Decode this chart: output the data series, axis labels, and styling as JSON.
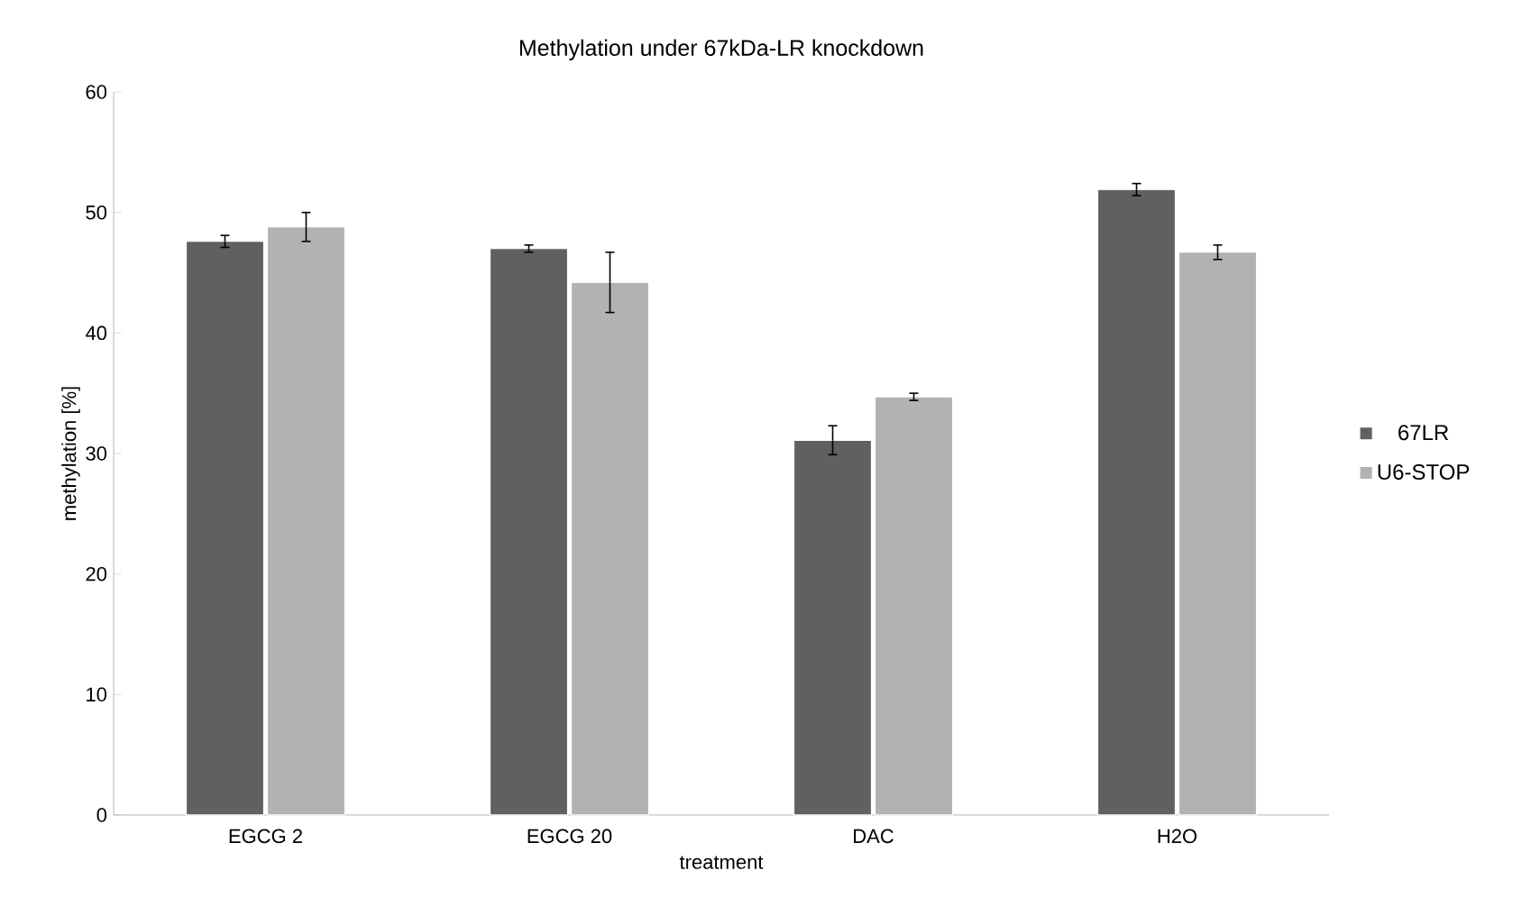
{
  "chart_data": {
    "type": "bar",
    "title": "Methylation under 67kDa-LR knockdown",
    "xlabel": "treatment",
    "ylabel": "methylation [%]",
    "categories": [
      "EGCG 2",
      "EGCG 20",
      "DAC",
      "H2O"
    ],
    "series": [
      {
        "name": "67LR",
        "color": "#606060",
        "values": [
          47.6,
          47.0,
          31.1,
          51.9
        ],
        "errors": [
          0.5,
          0.3,
          1.2,
          0.5
        ]
      },
      {
        "name": "U6-STOP",
        "color": "#b2b2b2",
        "values": [
          48.8,
          44.2,
          34.7,
          46.7
        ],
        "errors": [
          1.2,
          2.5,
          0.3,
          0.6
        ]
      }
    ],
    "ylim": [
      0,
      60
    ],
    "yticks": [
      0,
      10,
      20,
      30,
      40,
      50,
      60
    ],
    "grid": false,
    "legend": "right"
  }
}
